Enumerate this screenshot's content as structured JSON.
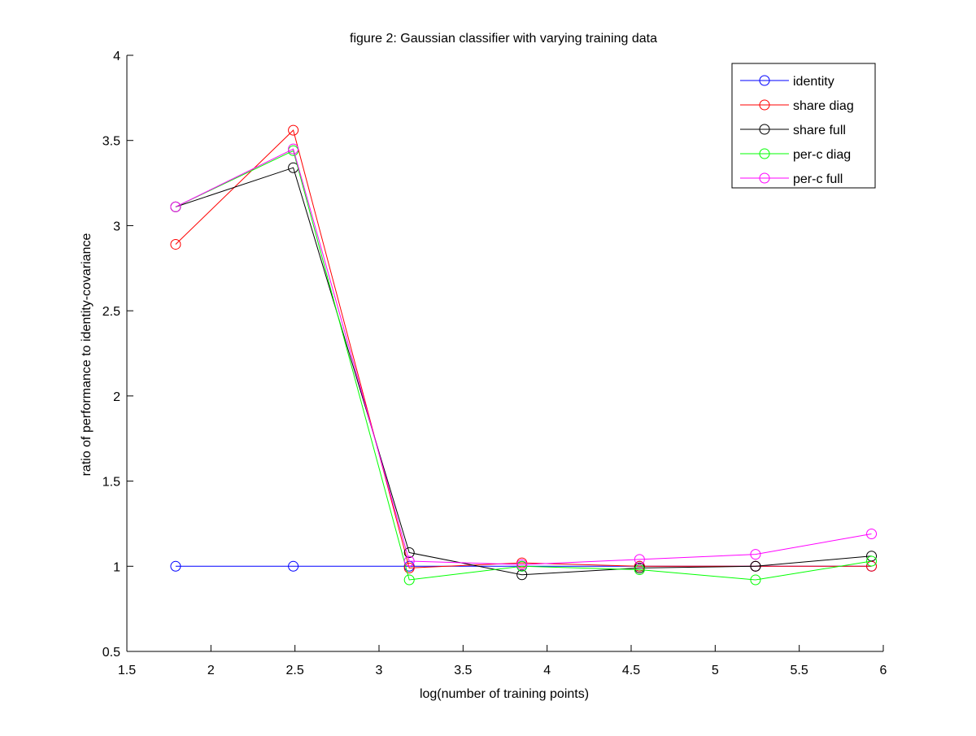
{
  "chart_data": {
    "type": "line",
    "title": "figure 2: Gaussian classifier with varying training data",
    "xlabel": "log(number of training points)",
    "ylabel": "ratio of performance to identity-covariance",
    "xlim": [
      1.5,
      6
    ],
    "ylim": [
      0.5,
      4
    ],
    "xticks": [
      1.5,
      2,
      2.5,
      3,
      3.5,
      4,
      4.5,
      5,
      5.5,
      6
    ],
    "xtick_labels": [
      "1.5",
      "2",
      "2.5",
      "3",
      "3.5",
      "4",
      "4.5",
      "5",
      "5.5",
      "6"
    ],
    "yticks": [
      0.5,
      1,
      1.5,
      2,
      2.5,
      3,
      3.5,
      4
    ],
    "ytick_labels": [
      "0.5",
      "1",
      "1.5",
      "2",
      "2.5",
      "3",
      "3.5",
      "4"
    ],
    "grid": false,
    "legend_position": "top-right",
    "marker": "circle",
    "x": [
      1.79,
      2.49,
      3.18,
      3.85,
      4.55,
      5.24,
      5.93
    ],
    "series": [
      {
        "name": "identity",
        "color": "#0000ff",
        "values": [
          1.0,
          1.0,
          1.0,
          1.0,
          1.0,
          1.0,
          1.0
        ]
      },
      {
        "name": "share diag",
        "color": "#ff0000",
        "values": [
          2.89,
          3.56,
          0.99,
          1.02,
          1.0,
          1.0,
          1.0
        ]
      },
      {
        "name": "share full",
        "color": "#000000",
        "values": [
          3.11,
          3.34,
          1.08,
          0.95,
          0.99,
          1.0,
          1.06
        ]
      },
      {
        "name": "per-c diag",
        "color": "#00ff00",
        "values": [
          3.11,
          3.44,
          0.92,
          1.0,
          0.98,
          0.92,
          1.03
        ]
      },
      {
        "name": "per-c full",
        "color": "#ff00ff",
        "values": [
          3.11,
          3.45,
          1.03,
          1.01,
          1.04,
          1.07,
          1.19
        ]
      }
    ]
  }
}
